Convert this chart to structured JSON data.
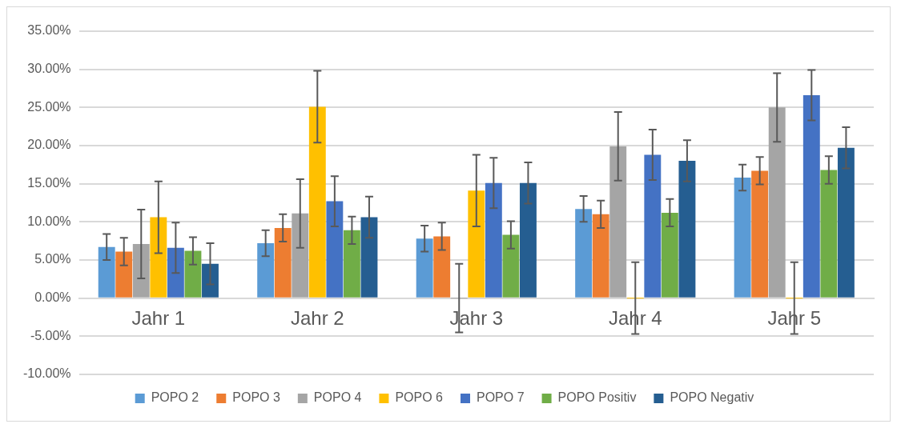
{
  "chart_data": {
    "type": "bar",
    "categories": [
      "Jahr 1",
      "Jahr 2",
      "Jahr 3",
      "Jahr 4",
      "Jahr 5"
    ],
    "series": [
      {
        "name": "POPO 2",
        "color": "#5b9bd5",
        "values": [
          6.7,
          7.2,
          7.8,
          11.7,
          15.8
        ],
        "errors": [
          1.7,
          1.7,
          1.7,
          1.7,
          1.7
        ]
      },
      {
        "name": "POPO 3",
        "color": "#ed7d31",
        "values": [
          6.1,
          9.2,
          8.1,
          11.0,
          16.7
        ],
        "errors": [
          1.8,
          1.8,
          1.8,
          1.8,
          1.8
        ]
      },
      {
        "name": "POPO 4",
        "color": "#a5a5a5",
        "values": [
          7.1,
          11.1,
          0,
          19.9,
          25.0
        ],
        "errors": [
          4.5,
          4.5,
          4.5,
          4.5,
          4.5
        ]
      },
      {
        "name": "POPO 6",
        "color": "#ffc000",
        "values": [
          10.6,
          25.1,
          14.1,
          0,
          0
        ],
        "errors": [
          4.7,
          4.7,
          4.7,
          4.7,
          4.7
        ]
      },
      {
        "name": "POPO 7",
        "color": "#4472c4",
        "values": [
          6.6,
          12.7,
          15.1,
          18.8,
          26.6
        ],
        "errors": [
          3.3,
          3.3,
          3.3,
          3.3,
          3.3
        ]
      },
      {
        "name": "POPO Positiv",
        "color": "#70ad47",
        "values": [
          6.2,
          8.9,
          8.3,
          11.2,
          16.8
        ],
        "errors": [
          1.8,
          1.8,
          1.8,
          1.8,
          1.8
        ]
      },
      {
        "name": "POPO Negativ",
        "color": "#255e91",
        "values": [
          4.5,
          10.6,
          15.1,
          18.0,
          19.7
        ],
        "errors": [
          2.7,
          2.7,
          2.7,
          2.7,
          2.7
        ]
      }
    ],
    "ylim": [
      -10,
      35
    ],
    "yticks": [
      {
        "value": -10,
        "label": "-10.00%"
      },
      {
        "value": -5,
        "label": "-5.00%"
      },
      {
        "value": 0,
        "label": "0.00%"
      },
      {
        "value": 5,
        "label": "5.00%"
      },
      {
        "value": 10,
        "label": "10.00%"
      },
      {
        "value": 15,
        "label": "15.00%"
      },
      {
        "value": 20,
        "label": "20.00%"
      },
      {
        "value": 25,
        "label": "25.00%"
      },
      {
        "value": 30,
        "label": "30.00%"
      },
      {
        "value": 35,
        "label": "35.00%"
      }
    ],
    "grid": "y",
    "legend": "bottom"
  }
}
